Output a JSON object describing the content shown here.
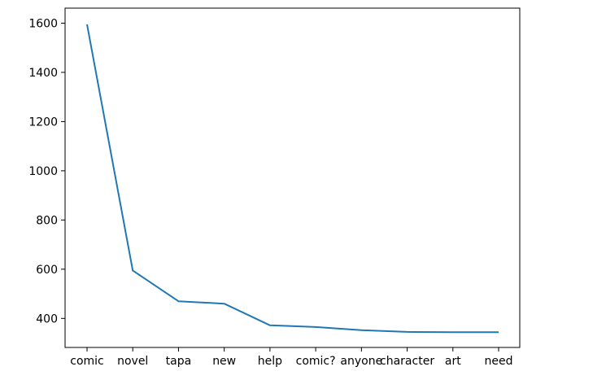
{
  "chart_data": {
    "type": "line",
    "categories": [
      "comic",
      "novel",
      "tapa",
      "new",
      "help",
      "comic?",
      "anyone",
      "character",
      "art",
      "need"
    ],
    "series": [
      {
        "values": [
          1595,
          595,
          470,
          460,
          372,
          365,
          352,
          345,
          344,
          344
        ],
        "color": "#1f77b4"
      }
    ],
    "title": "",
    "xlabel": "",
    "ylabel": "",
    "ylim": [
      282,
      1661
    ],
    "yticks": [
      400,
      600,
      800,
      1000,
      1200,
      1400,
      1600
    ],
    "grid": false,
    "legend": "none"
  }
}
